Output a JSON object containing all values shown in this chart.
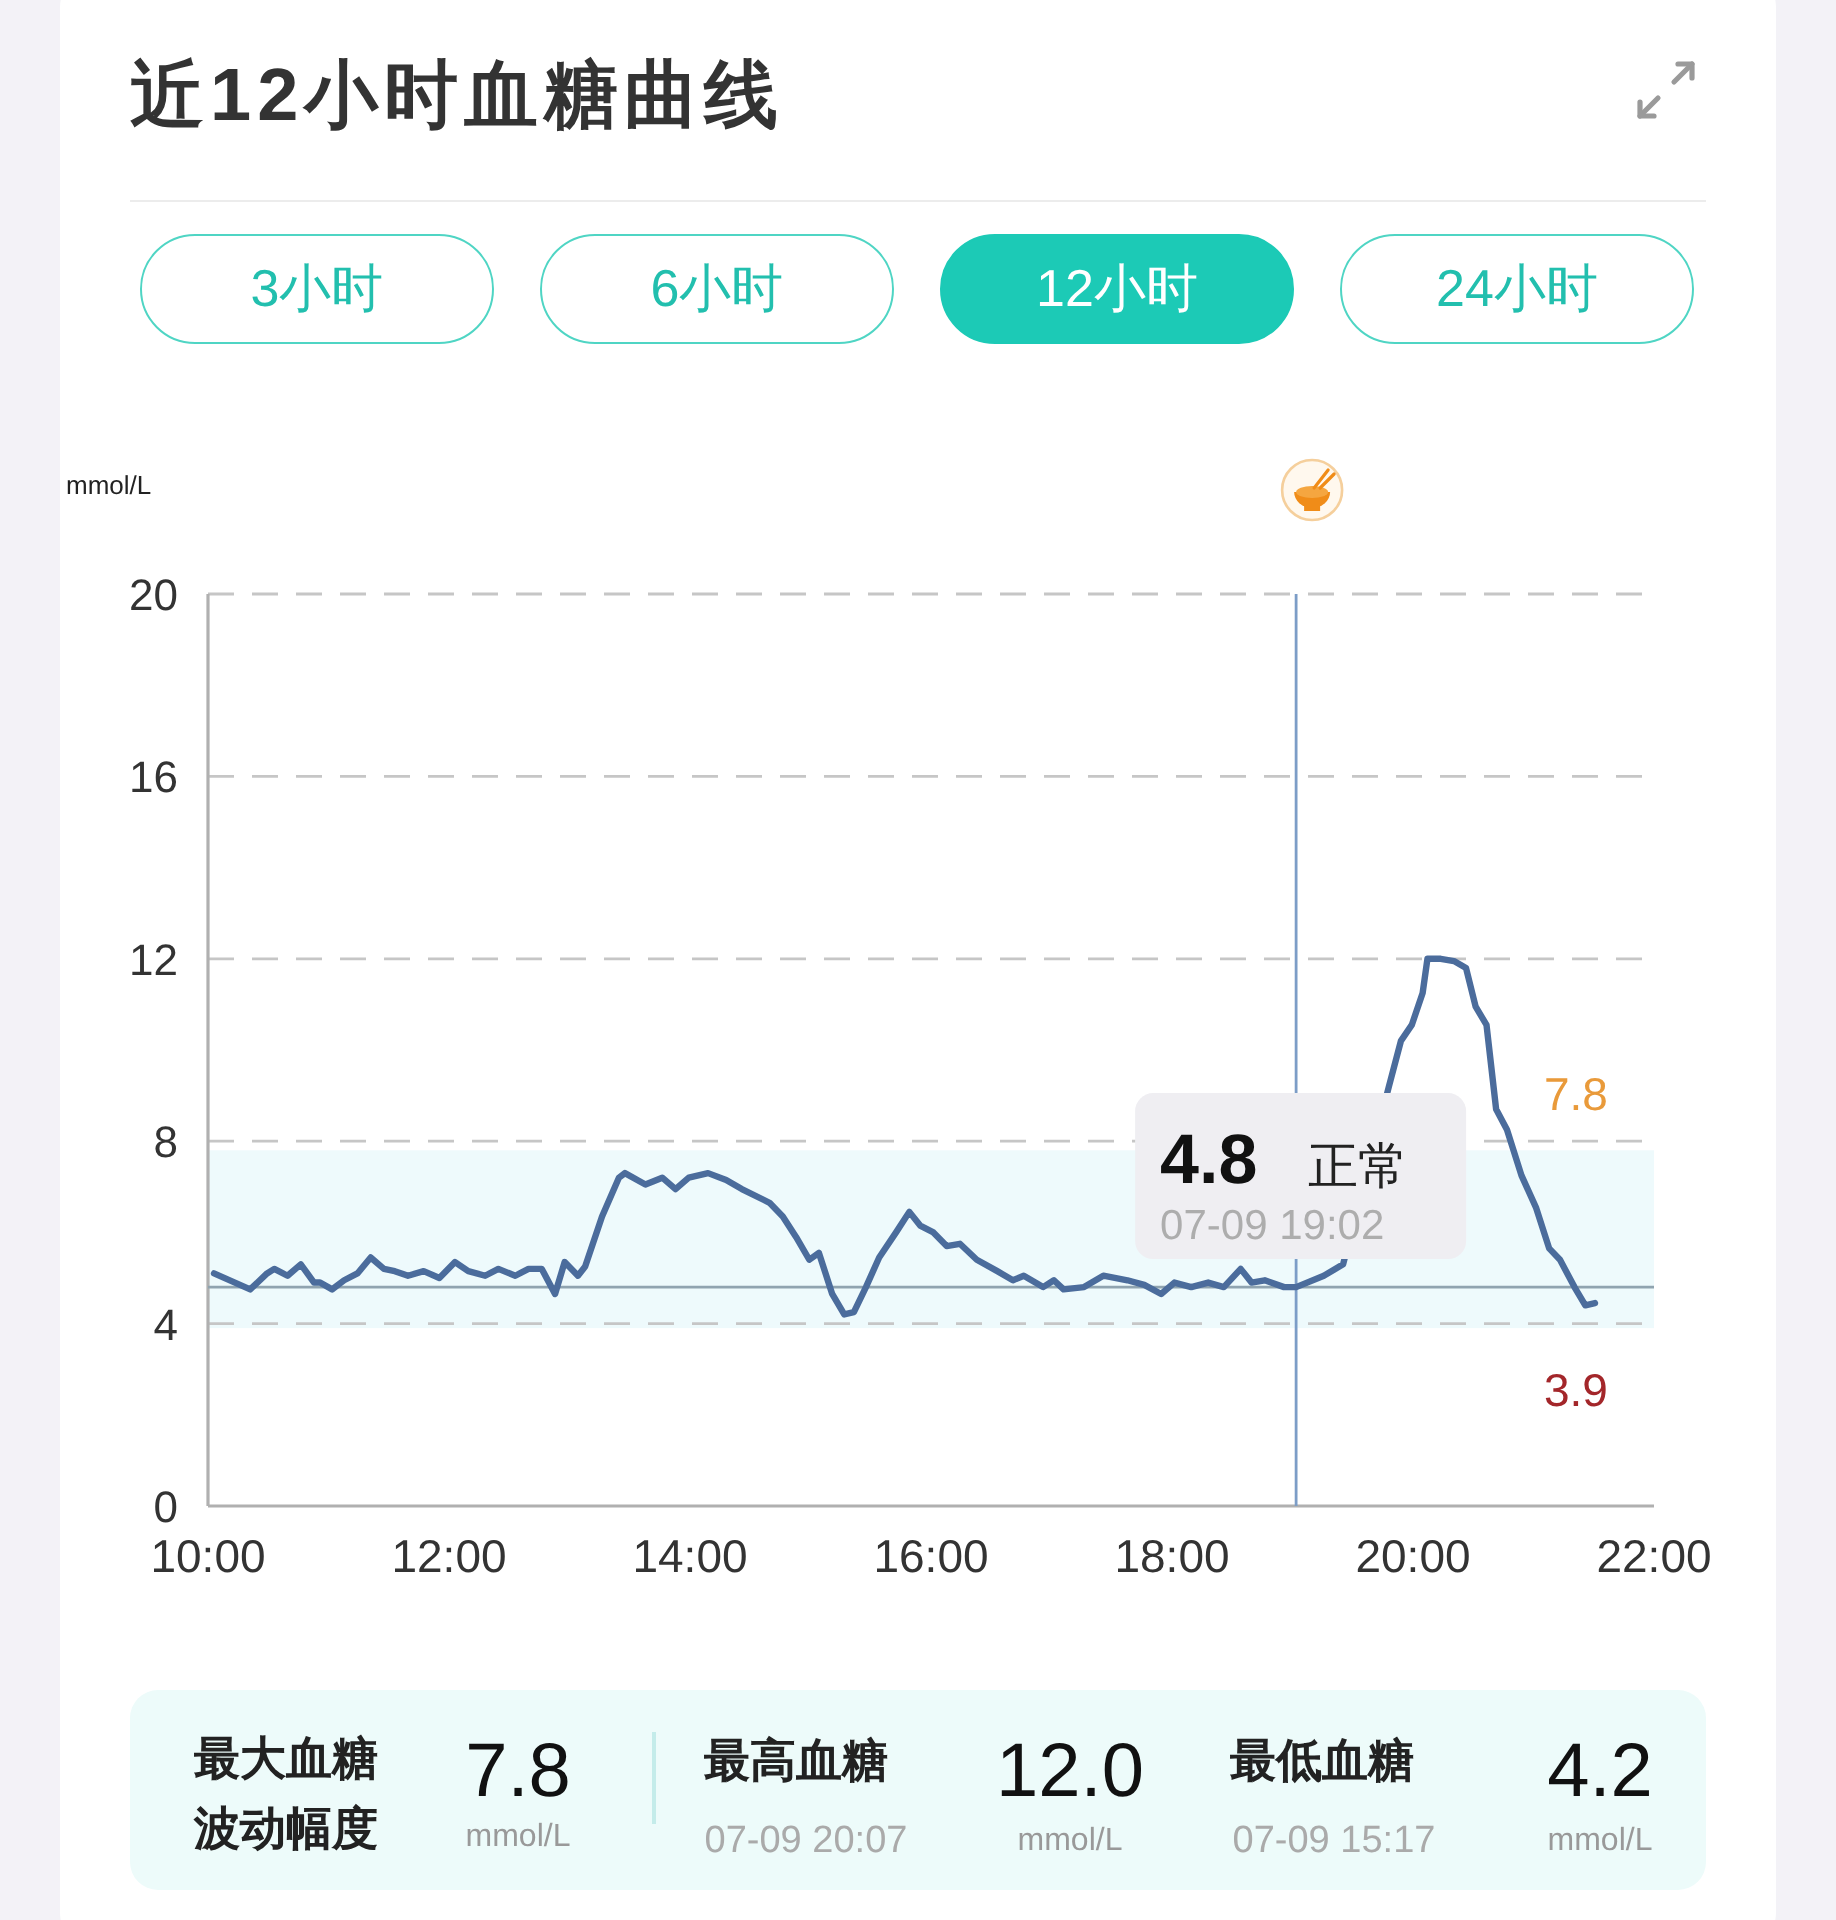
{
  "chart_data": {
    "type": "line",
    "title": "近12小时血糖曲线",
    "ylabel": "mmol/L",
    "x": [
      10.05,
      10.35,
      10.49,
      10.55,
      10.66,
      10.77,
      10.88,
      10.93,
      11.03,
      11.13,
      11.24,
      11.35,
      11.46,
      11.55,
      11.66,
      11.79,
      11.92,
      12.05,
      12.16,
      12.3,
      12.41,
      12.55,
      12.66,
      12.77,
      12.88,
      12.96,
      13.07,
      13.13,
      13.27,
      13.41,
      13.46,
      13.63,
      13.77,
      13.88,
      13.99,
      14.15,
      14.3,
      14.43,
      14.66,
      14.77,
      14.88,
      14.99,
      15.07,
      15.18,
      15.28,
      15.36,
      15.46,
      15.57,
      15.71,
      15.82,
      15.91,
      16.02,
      16.13,
      16.24,
      16.38,
      16.55,
      16.68,
      16.77,
      16.93,
      17.02,
      17.1,
      17.27,
      17.43,
      17.63,
      17.77,
      17.91,
      18.02,
      18.16,
      18.3,
      18.43,
      18.57,
      18.66,
      18.77,
      18.93,
      19.03,
      19.26,
      19.42,
      19.8,
      19.9,
      19.99,
      20.08,
      20.12,
      20.23,
      20.34,
      20.44,
      20.52,
      20.61,
      20.69,
      20.78,
      20.9,
      21.02,
      21.13,
      21.22,
      21.34,
      21.43,
      21.51
    ],
    "values": [
      5.1,
      4.75,
      5.1,
      5.2,
      5.05,
      5.3,
      4.9,
      4.9,
      4.75,
      4.95,
      5.1,
      5.45,
      5.2,
      5.15,
      5.05,
      5.15,
      5.0,
      5.35,
      5.15,
      5.05,
      5.2,
      5.05,
      5.2,
      5.2,
      4.65,
      5.35,
      5.05,
      5.25,
      6.35,
      7.2,
      7.3,
      7.05,
      7.2,
      6.95,
      7.2,
      7.3,
      7.15,
      6.95,
      6.65,
      6.35,
      5.9,
      5.4,
      5.55,
      4.65,
      4.2,
      4.25,
      4.8,
      5.45,
      6.0,
      6.45,
      6.15,
      6.0,
      5.7,
      5.75,
      5.4,
      5.15,
      4.95,
      5.05,
      4.8,
      4.95,
      4.75,
      4.8,
      5.05,
      4.95,
      4.85,
      4.65,
      4.9,
      4.8,
      4.9,
      4.8,
      5.2,
      4.9,
      4.95,
      4.8,
      4.8,
      5.05,
      5.3,
      9.2,
      10.2,
      10.55,
      11.25,
      12.0,
      12.0,
      11.95,
      11.8,
      10.95,
      10.55,
      8.7,
      8.25,
      7.25,
      6.55,
      5.65,
      5.4,
      4.8,
      4.4,
      4.45
    ],
    "color": "#4b6c9c",
    "xlim": [
      10,
      22
    ],
    "xticks": [
      {
        "value": 10,
        "label": "10:00"
      },
      {
        "value": 12,
        "label": "12:00"
      },
      {
        "value": 14,
        "label": "14:00"
      },
      {
        "value": 16,
        "label": "16:00"
      },
      {
        "value": 18,
        "label": "18:00"
      },
      {
        "value": 20,
        "label": "20:00"
      },
      {
        "value": 22,
        "label": "22:00"
      }
    ],
    "ylim": [
      0,
      20
    ],
    "yticks": [
      0,
      4,
      8,
      12,
      16,
      20
    ],
    "grid": "y",
    "bands": [
      {
        "axis": "y",
        "from": 3.9,
        "to": 7.8,
        "color": "#eefafc"
      }
    ],
    "ref_lines": [
      {
        "axis": "x",
        "value": 19.03,
        "color": "#7c9dc7"
      },
      {
        "axis": "y",
        "value": 4.8,
        "color": "#90a4b0"
      }
    ],
    "annotations": [
      "3小时",
      "6小时",
      "12小时",
      "24小时",
      "最大血糖波动幅度",
      "7.8",
      "mmol/L",
      "最高血糖",
      "07-09 20:07",
      "12.0",
      "mmol/L",
      "最低血糖",
      "07-09 15:17",
      "4.2",
      "mmol/L",
      {
        "text": "4.8",
        "x": 19.03,
        "y": 4.8
      },
      "正常",
      "07-09 19:02",
      {
        "text": "7.8",
        "y": 7.8
      },
      {
        "text": "3.9",
        "y": 3.9
      }
    ]
  }
}
